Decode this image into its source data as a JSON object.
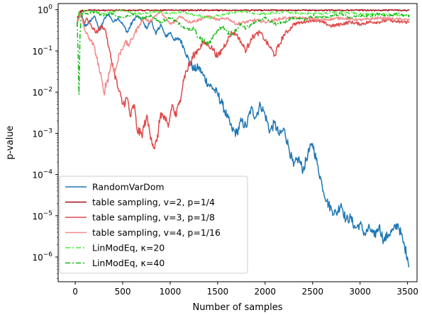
{
  "chart_data": {
    "type": "line",
    "xlabel": "Number of samples",
    "ylabel": "p-value",
    "xlim": [
      -180,
      3600
    ],
    "ylim_log10": [
      -6.6,
      0.15
    ],
    "y_scale": "log",
    "grid": false,
    "legend_position": "lower-left",
    "x_ticks": [
      0,
      500,
      1000,
      1500,
      2000,
      2500,
      3000,
      3500
    ],
    "x_tick_labels": [
      "0",
      "500",
      "1000",
      "1500",
      "2000",
      "2500",
      "3000",
      "3500"
    ],
    "y_ticks_log10": [
      0,
      -1,
      -2,
      -3,
      -4,
      -5,
      -6
    ],
    "y_tick_labels": [
      {
        "base": "10",
        "exp": "0"
      },
      {
        "base": "10",
        "exp": "−1"
      },
      {
        "base": "10",
        "exp": "−2"
      },
      {
        "base": "10",
        "exp": "−3"
      },
      {
        "base": "10",
        "exp": "−4"
      },
      {
        "base": "10",
        "exp": "−5"
      },
      {
        "base": "10",
        "exp": "−6"
      }
    ],
    "series": [
      {
        "name": "RandomVarDom",
        "color": "#1f77b4",
        "dash": "solid",
        "points": [
          [
            20,
            -0.2
          ],
          [
            60,
            -0.05
          ],
          [
            100,
            -0.4
          ],
          [
            150,
            -0.3
          ],
          [
            200,
            -0.15
          ],
          [
            260,
            -0.5
          ],
          [
            300,
            -0.25
          ],
          [
            350,
            -0.1
          ],
          [
            400,
            -0.3
          ],
          [
            450,
            -0.2
          ],
          [
            500,
            -0.35
          ],
          [
            550,
            -0.55
          ],
          [
            600,
            -0.3
          ],
          [
            650,
            -0.15
          ],
          [
            700,
            -0.25
          ],
          [
            750,
            -0.45
          ],
          [
            800,
            -0.25
          ],
          [
            850,
            -0.6
          ],
          [
            900,
            -0.35
          ],
          [
            950,
            -0.65
          ],
          [
            1000,
            -0.55
          ],
          [
            1050,
            -0.75
          ],
          [
            1100,
            -0.7
          ],
          [
            1150,
            -0.95
          ],
          [
            1200,
            -1.25
          ],
          [
            1250,
            -1.45
          ],
          [
            1300,
            -1.4
          ],
          [
            1350,
            -1.6
          ],
          [
            1400,
            -1.8
          ],
          [
            1450,
            -1.9
          ],
          [
            1500,
            -2.05
          ],
          [
            1550,
            -2.3
          ],
          [
            1600,
            -2.6
          ],
          [
            1650,
            -2.9
          ],
          [
            1700,
            -3.0
          ],
          [
            1750,
            -2.7
          ],
          [
            1800,
            -2.85
          ],
          [
            1850,
            -2.4
          ],
          [
            1900,
            -2.6
          ],
          [
            1950,
            -2.3
          ],
          [
            2000,
            -2.55
          ],
          [
            2050,
            -2.95
          ],
          [
            2100,
            -2.75
          ],
          [
            2150,
            -3.05
          ],
          [
            2200,
            -2.9
          ],
          [
            2250,
            -3.35
          ],
          [
            2300,
            -3.8
          ],
          [
            2350,
            -3.6
          ],
          [
            2400,
            -3.9
          ],
          [
            2450,
            -3.5
          ],
          [
            2500,
            -3.25
          ],
          [
            2550,
            -3.75
          ],
          [
            2600,
            -4.25
          ],
          [
            2650,
            -4.65
          ],
          [
            2700,
            -4.85
          ],
          [
            2750,
            -4.95
          ],
          [
            2800,
            -4.7
          ],
          [
            2850,
            -5.1
          ],
          [
            2900,
            -5.05
          ],
          [
            2950,
            -5.3
          ],
          [
            3000,
            -5.2
          ],
          [
            3050,
            -5.45
          ],
          [
            3100,
            -5.3
          ],
          [
            3150,
            -5.5
          ],
          [
            3200,
            -5.25
          ],
          [
            3250,
            -5.6
          ],
          [
            3300,
            -5.45
          ],
          [
            3350,
            -5.35
          ],
          [
            3400,
            -5.2
          ],
          [
            3450,
            -5.6
          ],
          [
            3500,
            -6.0
          ],
          [
            3515,
            -6.25
          ]
        ]
      },
      {
        "name": "table sampling, v=2, p=1/4",
        "color": "#a50f15",
        "dash": "solid",
        "points": [
          [
            20,
            -0.3
          ],
          [
            40,
            -0.05
          ],
          [
            80,
            -0.02
          ],
          [
            150,
            0
          ],
          [
            300,
            0
          ],
          [
            500,
            -0.01
          ],
          [
            700,
            0
          ],
          [
            900,
            0
          ],
          [
            1100,
            -0.01
          ],
          [
            1300,
            0
          ],
          [
            1500,
            0
          ],
          [
            1800,
            0
          ],
          [
            2100,
            0
          ],
          [
            2400,
            0
          ],
          [
            2700,
            0
          ],
          [
            3000,
            0
          ],
          [
            3300,
            0
          ],
          [
            3520,
            0
          ]
        ]
      },
      {
        "name": "table sampling, v=3, p=1/8",
        "color": "#de4a4a",
        "dash": "solid",
        "points": [
          [
            20,
            -0.3
          ],
          [
            50,
            -0.05
          ],
          [
            90,
            -0.35
          ],
          [
            120,
            -0.2
          ],
          [
            170,
            -0.4
          ],
          [
            220,
            -0.55
          ],
          [
            280,
            -0.4
          ],
          [
            320,
            -0.5
          ],
          [
            350,
            -0.9
          ],
          [
            400,
            -1.4
          ],
          [
            450,
            -1.9
          ],
          [
            500,
            -2.3
          ],
          [
            550,
            -2.15
          ],
          [
            580,
            -2.6
          ],
          [
            620,
            -2.3
          ],
          [
            650,
            -2.9
          ],
          [
            700,
            -3.05
          ],
          [
            750,
            -2.6
          ],
          [
            800,
            -3.1
          ],
          [
            830,
            -3.35
          ],
          [
            860,
            -3.2
          ],
          [
            900,
            -2.5
          ],
          [
            950,
            -2.7
          ],
          [
            980,
            -2.85
          ],
          [
            1020,
            -2.3
          ],
          [
            1060,
            -2.6
          ],
          [
            1100,
            -2.2
          ],
          [
            1150,
            -1.6
          ],
          [
            1200,
            -1.35
          ],
          [
            1250,
            -1.1
          ],
          [
            1300,
            -0.95
          ],
          [
            1350,
            -0.8
          ],
          [
            1400,
            -0.85
          ],
          [
            1450,
            -0.95
          ],
          [
            1500,
            -1.15
          ],
          [
            1550,
            -0.95
          ],
          [
            1600,
            -0.75
          ],
          [
            1650,
            -0.55
          ],
          [
            1700,
            -0.6
          ],
          [
            1750,
            -0.8
          ],
          [
            1800,
            -1.0
          ],
          [
            1850,
            -0.7
          ],
          [
            1900,
            -0.6
          ],
          [
            1950,
            -0.55
          ],
          [
            2000,
            -0.75
          ],
          [
            2050,
            -0.9
          ],
          [
            2100,
            -1.1
          ],
          [
            2150,
            -0.85
          ],
          [
            2200,
            -0.6
          ],
          [
            2250,
            -0.5
          ],
          [
            2300,
            -0.35
          ],
          [
            2400,
            -0.3
          ],
          [
            2500,
            -0.25
          ],
          [
            2600,
            -0.3
          ],
          [
            2700,
            -0.4
          ],
          [
            2800,
            -0.35
          ],
          [
            2900,
            -0.3
          ],
          [
            3000,
            -0.35
          ],
          [
            3100,
            -0.3
          ],
          [
            3200,
            -0.3
          ],
          [
            3300,
            -0.25
          ],
          [
            3400,
            -0.3
          ],
          [
            3520,
            -0.3
          ]
        ]
      },
      {
        "name": "table sampling, v=4, p=1/16",
        "color": "#f28a8a",
        "dash": "solid",
        "points": [
          [
            20,
            -0.3
          ],
          [
            60,
            -0.1
          ],
          [
            100,
            -0.5
          ],
          [
            150,
            -0.7
          ],
          [
            200,
            -0.9
          ],
          [
            250,
            -1.4
          ],
          [
            300,
            -2.0
          ],
          [
            340,
            -1.7
          ],
          [
            380,
            -1.3
          ],
          [
            420,
            -1.5
          ],
          [
            470,
            -1.05
          ],
          [
            520,
            -0.8
          ],
          [
            570,
            -0.85
          ],
          [
            620,
            -0.6
          ],
          [
            680,
            -0.35
          ],
          [
            730,
            -0.2
          ],
          [
            780,
            -0.3
          ],
          [
            840,
            -0.15
          ],
          [
            900,
            -0.05
          ],
          [
            950,
            -0.2
          ],
          [
            1000,
            -0.35
          ],
          [
            1050,
            -0.3
          ],
          [
            1100,
            -0.15
          ],
          [
            1200,
            -0.3
          ],
          [
            1300,
            -0.25
          ],
          [
            1400,
            -0.15
          ],
          [
            1500,
            -0.25
          ],
          [
            1600,
            -0.2
          ],
          [
            1700,
            -0.35
          ],
          [
            1800,
            -0.3
          ],
          [
            1900,
            -0.25
          ],
          [
            2000,
            -0.3
          ],
          [
            2200,
            -0.2
          ],
          [
            2400,
            -0.2
          ],
          [
            2600,
            -0.25
          ],
          [
            2800,
            -0.2
          ],
          [
            3000,
            -0.25
          ],
          [
            3200,
            -0.2
          ],
          [
            3520,
            -0.25
          ]
        ]
      },
      {
        "name": "LinModEq, κ=20",
        "color": "#44ee33",
        "dash": "dashdot",
        "points": [
          [
            20,
            -0.4
          ],
          [
            40,
            -0.05
          ],
          [
            60,
            -0.1
          ],
          [
            100,
            -0.02
          ],
          [
            200,
            -0.05
          ],
          [
            300,
            -0.1
          ],
          [
            400,
            -0.05
          ],
          [
            500,
            -0.02
          ],
          [
            600,
            -0.08
          ],
          [
            700,
            -0.1
          ],
          [
            800,
            -0.05
          ],
          [
            900,
            -0.05
          ],
          [
            1000,
            -0.1
          ],
          [
            1100,
            -0.05
          ],
          [
            1200,
            -0.1
          ],
          [
            1300,
            -0.15
          ],
          [
            1400,
            -0.2
          ],
          [
            1500,
            -0.15
          ],
          [
            1600,
            -0.1
          ],
          [
            1700,
            -0.05
          ],
          [
            1800,
            -0.05
          ],
          [
            1900,
            -0.1
          ],
          [
            2000,
            -0.1
          ],
          [
            2200,
            -0.05
          ],
          [
            2400,
            -0.1
          ],
          [
            2600,
            -0.1
          ],
          [
            2800,
            -0.05
          ],
          [
            3000,
            -0.1
          ],
          [
            3200,
            -0.1
          ],
          [
            3520,
            -0.15
          ]
        ]
      },
      {
        "name": "LinModEq, κ=40",
        "color": "#11bb11",
        "dash": "dashdot",
        "points": [
          [
            20,
            -0.3
          ],
          [
            30,
            -1.0
          ],
          [
            40,
            -2.05
          ],
          [
            50,
            -0.6
          ],
          [
            60,
            -0.2
          ],
          [
            80,
            -0.05
          ],
          [
            130,
            -0.1
          ],
          [
            200,
            -0.05
          ],
          [
            300,
            -0.15
          ],
          [
            400,
            -0.1
          ],
          [
            500,
            -0.2
          ],
          [
            600,
            -0.1
          ],
          [
            700,
            -0.2
          ],
          [
            800,
            -0.15
          ],
          [
            900,
            -0.3
          ],
          [
            1000,
            -0.2
          ],
          [
            1100,
            -0.35
          ],
          [
            1200,
            -0.5
          ],
          [
            1250,
            -0.45
          ],
          [
            1300,
            -0.7
          ],
          [
            1350,
            -0.75
          ],
          [
            1400,
            -0.85
          ],
          [
            1450,
            -0.65
          ],
          [
            1500,
            -0.5
          ],
          [
            1550,
            -0.4
          ],
          [
            1600,
            -0.55
          ],
          [
            1650,
            -0.6
          ],
          [
            1700,
            -0.45
          ],
          [
            1750,
            -0.35
          ],
          [
            1800,
            -0.45
          ],
          [
            1900,
            -0.3
          ],
          [
            2000,
            -0.2
          ],
          [
            2100,
            -0.35
          ],
          [
            2200,
            -0.3
          ],
          [
            2300,
            -0.2
          ],
          [
            2400,
            -0.25
          ],
          [
            2500,
            -0.15
          ],
          [
            2600,
            -0.2
          ],
          [
            2700,
            -0.15
          ],
          [
            2800,
            -0.1
          ],
          [
            2900,
            -0.2
          ],
          [
            3000,
            -0.15
          ],
          [
            3100,
            -0.15
          ],
          [
            3200,
            -0.1
          ],
          [
            3300,
            -0.15
          ],
          [
            3400,
            -0.1
          ],
          [
            3520,
            -0.15
          ]
        ]
      }
    ]
  }
}
